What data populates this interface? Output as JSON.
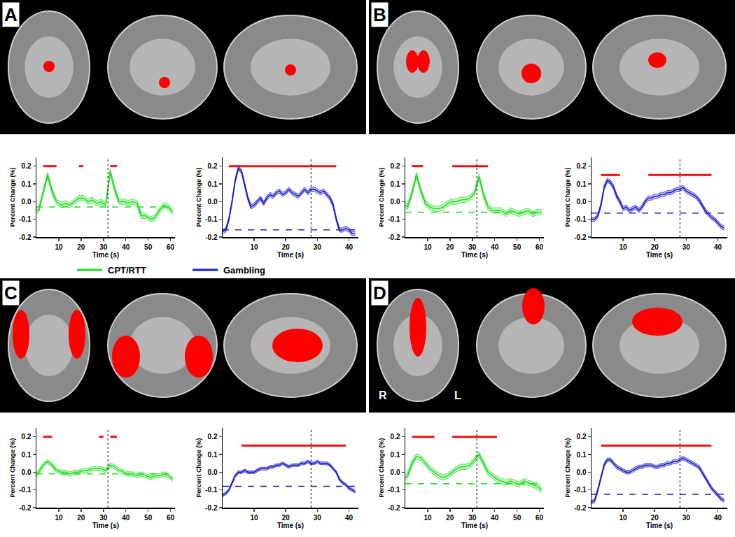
{
  "panels": [
    {
      "label": "A"
    },
    {
      "label": "B"
    },
    {
      "label": "C"
    },
    {
      "label": "D",
      "image_labels": [
        "R",
        "L"
      ]
    }
  ],
  "key": [
    {
      "name": "CPT/RTT",
      "color": "#22dd22"
    },
    {
      "name": "Gambling",
      "color": "#1a1acc"
    }
  ],
  "chart_data": [
    {
      "type": "line",
      "xlabel": "Time (s)",
      "ylabel": "Percent Change (%)",
      "xlim": [
        0,
        62
      ],
      "xticks": [
        10,
        20,
        30,
        40,
        50,
        60
      ],
      "ylim": [
        -0.2,
        0.25
      ],
      "yticks": [
        -0.2,
        -0.1,
        {
          "value": 0,
          "label": "0.0"
        },
        0.1,
        0.2
      ],
      "x": [
        0,
        1,
        3,
        5,
        7,
        9,
        11,
        13,
        15,
        17,
        19,
        21,
        23,
        25,
        27,
        29,
        31,
        33,
        35,
        37,
        39,
        41,
        43,
        45,
        47,
        49,
        51,
        53,
        55,
        57,
        59,
        61
      ],
      "series": [
        {
          "color": "#22dd22",
          "error": 0.015,
          "values": [
            -0.05,
            -0.05,
            0.05,
            0.15,
            0.06,
            0,
            -0.02,
            -0.01,
            -0.02,
            0,
            0.02,
            0.02,
            0,
            0.01,
            -0.01,
            0,
            -0.02,
            0.17,
            0.07,
            0,
            0,
            -0.01,
            0,
            -0.01,
            -0.08,
            -0.08,
            -0.1,
            -0.09,
            -0.05,
            -0.02,
            -0.03,
            -0.06
          ]
        }
      ],
      "baseline": -0.03,
      "event_time": 32,
      "significance": {
        "y": 0.2,
        "color": "#ee1111",
        "segments": [
          [
            3,
            9
          ],
          [
            19,
            21
          ],
          [
            33,
            36
          ]
        ]
      }
    },
    {
      "type": "line",
      "xlabel": "Time (s)",
      "ylabel": "Percent Change (%)",
      "xlim": [
        0,
        43
      ],
      "xticks": [
        10,
        20,
        30,
        40
      ],
      "ylim": [
        -0.2,
        0.25
      ],
      "yticks": [
        -0.2,
        -0.1,
        {
          "value": 0,
          "label": "0.0"
        },
        0.1,
        0.2
      ],
      "x": [
        0,
        1,
        2,
        3,
        4,
        5,
        6,
        7,
        8,
        9,
        10,
        11,
        12,
        13,
        14,
        15,
        16,
        17,
        18,
        19,
        20,
        21,
        22,
        23,
        24,
        25,
        26,
        27,
        28,
        29,
        30,
        31,
        32,
        33,
        34,
        35,
        36,
        37,
        38,
        39,
        40,
        41,
        42
      ],
      "series": [
        {
          "color": "#1a1acc",
          "error": 0.012,
          "values": [
            -0.17,
            -0.16,
            -0.1,
            0,
            0.12,
            0.19,
            0.17,
            0.1,
            0.02,
            -0.03,
            -0.02,
            0,
            0.02,
            -0.01,
            0.02,
            0.04,
            0.03,
            0.05,
            0.06,
            0.04,
            0.05,
            0.07,
            0.05,
            0.04,
            0.03,
            0.05,
            0.07,
            0.05,
            0.07,
            0.07,
            0.06,
            0.05,
            0.06,
            0.04,
            0.02,
            -0.02,
            -0.1,
            -0.16,
            -0.16,
            -0.15,
            -0.16,
            -0.18,
            -0.18
          ]
        }
      ],
      "baseline": -0.16,
      "event_time": 28,
      "significance": {
        "y": 0.2,
        "color": "#ee1111",
        "segments": [
          [
            2,
            36
          ]
        ]
      }
    },
    {
      "type": "line",
      "xlabel": "Time (s)",
      "ylabel": "Percent Change (%)",
      "xlim": [
        0,
        62
      ],
      "xticks": [
        10,
        20,
        30,
        40,
        50,
        60
      ],
      "ylim": [
        -0.2,
        0.25
      ],
      "yticks": [
        -0.2,
        -0.1,
        {
          "value": 0,
          "label": "0.0"
        },
        0.1,
        0.2
      ],
      "x": [
        0,
        1,
        3,
        5,
        7,
        9,
        11,
        13,
        15,
        17,
        19,
        21,
        23,
        25,
        27,
        29,
        31,
        33,
        35,
        37,
        39,
        41,
        43,
        45,
        47,
        49,
        51,
        53,
        55,
        57,
        59,
        61
      ],
      "series": [
        {
          "color": "#22dd22",
          "error": 0.015,
          "values": [
            -0.02,
            -0.03,
            0.05,
            0.15,
            0.06,
            -0.01,
            -0.03,
            -0.04,
            -0.04,
            -0.03,
            -0.01,
            0,
            0,
            0.01,
            0.01,
            0.02,
            0.05,
            0.14,
            0.04,
            -0.03,
            -0.05,
            -0.05,
            -0.05,
            -0.07,
            -0.05,
            -0.06,
            -0.07,
            -0.06,
            -0.05,
            -0.07,
            -0.06,
            -0.06
          ]
        }
      ],
      "baseline": -0.06,
      "event_time": 32,
      "significance": {
        "y": 0.2,
        "color": "#ee1111",
        "segments": [
          [
            3,
            8
          ],
          [
            21,
            37
          ]
        ]
      }
    },
    {
      "type": "line",
      "xlabel": "Time (s)",
      "ylabel": "Percent Change (%)",
      "xlim": [
        0,
        43
      ],
      "xticks": [
        10,
        20,
        30,
        40
      ],
      "ylim": [
        -0.2,
        0.25
      ],
      "yticks": [
        -0.2,
        -0.1,
        {
          "value": 0,
          "label": "0.0"
        },
        0.1,
        0.2
      ],
      "x": [
        0,
        1,
        2,
        3,
        4,
        5,
        6,
        7,
        8,
        9,
        10,
        11,
        12,
        13,
        14,
        15,
        16,
        17,
        18,
        19,
        20,
        21,
        22,
        23,
        24,
        25,
        26,
        27,
        28,
        29,
        30,
        31,
        32,
        33,
        34,
        35,
        36,
        37,
        38,
        39,
        40,
        41,
        42
      ],
      "series": [
        {
          "color": "#1a1acc",
          "error": 0.012,
          "values": [
            -0.1,
            -0.1,
            -0.08,
            -0.02,
            0.08,
            0.12,
            0.11,
            0.08,
            0.03,
            0,
            -0.04,
            -0.03,
            -0.05,
            -0.04,
            -0.03,
            -0.05,
            -0.03,
            0,
            0.02,
            0.02,
            0.03,
            0.03,
            0.04,
            0.04,
            0.05,
            0.05,
            0.06,
            0.07,
            0.07,
            0.08,
            0.06,
            0.05,
            0.04,
            0.03,
            0.01,
            -0.02,
            -0.05,
            -0.07,
            -0.09,
            -0.1,
            -0.12,
            -0.14,
            -0.15
          ]
        }
      ],
      "baseline": -0.065,
      "event_time": 28,
      "significance": {
        "y": 0.15,
        "color": "#ee1111",
        "segments": [
          [
            3,
            9
          ],
          [
            18,
            38
          ]
        ]
      }
    },
    {
      "type": "line",
      "xlabel": "Time (s)",
      "ylabel": "Percent Change (%)",
      "xlim": [
        0,
        62
      ],
      "xticks": [
        10,
        20,
        30,
        40,
        50,
        60
      ],
      "ylim": [
        -0.2,
        0.25
      ],
      "yticks": [
        -0.2,
        -0.1,
        {
          "value": 0,
          "label": "0.0"
        },
        0.1,
        0.2
      ],
      "x": [
        0,
        1,
        3,
        5,
        7,
        9,
        11,
        13,
        15,
        17,
        19,
        21,
        23,
        25,
        27,
        29,
        31,
        33,
        35,
        37,
        39,
        41,
        43,
        45,
        47,
        49,
        51,
        53,
        55,
        57,
        59,
        61
      ],
      "series": [
        {
          "color": "#22dd22",
          "error": 0.012,
          "values": [
            -0.01,
            0,
            0.04,
            0.06,
            0.04,
            0.01,
            0,
            0,
            -0.01,
            0,
            0,
            0.01,
            0.01,
            0.02,
            0.02,
            0.02,
            0.01,
            0.04,
            0.03,
            0.01,
            0,
            -0.01,
            -0.01,
            -0.02,
            -0.01,
            -0.02,
            -0.03,
            -0.02,
            -0.02,
            -0.01,
            -0.02,
            -0.04
          ]
        }
      ],
      "baseline": -0.01,
      "event_time": 32,
      "significance": {
        "y": 0.2,
        "color": "#ee1111",
        "segments": [
          [
            3,
            7
          ],
          [
            28,
            30
          ],
          [
            33,
            36
          ]
        ]
      }
    },
    {
      "type": "line",
      "xlabel": "Time (s)",
      "ylabel": "Percent Change (%)",
      "xlim": [
        0,
        43
      ],
      "xticks": [
        10,
        20,
        30,
        40
      ],
      "ylim": [
        -0.2,
        0.25
      ],
      "yticks": [
        -0.2,
        -0.1,
        {
          "value": 0,
          "label": "0.0"
        },
        0.1,
        0.2
      ],
      "x": [
        0,
        1,
        2,
        3,
        4,
        5,
        6,
        7,
        8,
        9,
        10,
        11,
        12,
        13,
        14,
        15,
        16,
        17,
        18,
        19,
        20,
        21,
        22,
        23,
        24,
        25,
        26,
        27,
        28,
        29,
        30,
        31,
        32,
        33,
        34,
        35,
        36,
        37,
        38,
        39,
        40,
        41,
        42
      ],
      "series": [
        {
          "color": "#1a1acc",
          "error": 0.008,
          "values": [
            -0.13,
            -0.12,
            -0.1,
            -0.06,
            -0.02,
            0,
            0,
            0.01,
            0,
            0,
            0,
            0.01,
            0.02,
            0.02,
            0.02,
            0.03,
            0.03,
            0.04,
            0.04,
            0.05,
            0.04,
            0.03,
            0.04,
            0.04,
            0.04,
            0.05,
            0.05,
            0.06,
            0.05,
            0.05,
            0.06,
            0.05,
            0.05,
            0.05,
            0.04,
            0.02,
            0,
            -0.04,
            -0.06,
            -0.07,
            -0.09,
            -0.1,
            -0.11
          ]
        }
      ],
      "baseline": -0.08,
      "event_time": 28,
      "significance": {
        "y": 0.15,
        "color": "#ee1111",
        "segments": [
          [
            6,
            39
          ]
        ]
      }
    },
    {
      "type": "line",
      "xlabel": "Time (s)",
      "ylabel": "Percent Change (%)",
      "xlim": [
        0,
        62
      ],
      "xticks": [
        10,
        20,
        30,
        40,
        50,
        60
      ],
      "ylim": [
        -0.2,
        0.25
      ],
      "yticks": [
        -0.2,
        -0.1,
        {
          "value": 0,
          "label": "0.0"
        },
        0.1,
        0.2
      ],
      "x": [
        0,
        1,
        3,
        5,
        7,
        9,
        11,
        13,
        15,
        17,
        19,
        21,
        23,
        25,
        27,
        29,
        31,
        33,
        35,
        37,
        39,
        41,
        43,
        45,
        47,
        49,
        51,
        53,
        55,
        57,
        59,
        61
      ],
      "series": [
        {
          "color": "#22dd22",
          "error": 0.015,
          "values": [
            -0.03,
            -0.02,
            0.05,
            0.09,
            0.08,
            0.05,
            0.02,
            0,
            -0.02,
            -0.03,
            -0.02,
            0,
            0.02,
            0.03,
            0.03,
            0.04,
            0.07,
            0.1,
            0.05,
            0,
            -0.02,
            -0.04,
            -0.05,
            -0.06,
            -0.05,
            -0.06,
            -0.07,
            -0.05,
            -0.06,
            -0.07,
            -0.08,
            -0.1
          ]
        }
      ],
      "baseline": -0.065,
      "event_time": 32,
      "significance": {
        "y": 0.2,
        "color": "#ee1111",
        "segments": [
          [
            3,
            13
          ],
          [
            21,
            41
          ]
        ]
      }
    },
    {
      "type": "line",
      "xlabel": "Time (s)",
      "ylabel": "Percent Change (%)",
      "xlim": [
        0,
        43
      ],
      "xticks": [
        10,
        20,
        30,
        40
      ],
      "ylim": [
        -0.2,
        0.25
      ],
      "yticks": [
        -0.2,
        -0.1,
        {
          "value": 0,
          "label": "0.0"
        },
        0.1,
        0.2
      ],
      "x": [
        0,
        1,
        2,
        3,
        4,
        5,
        6,
        7,
        8,
        9,
        10,
        11,
        12,
        13,
        14,
        15,
        16,
        17,
        18,
        19,
        20,
        21,
        22,
        23,
        24,
        25,
        26,
        27,
        28,
        29,
        30,
        31,
        32,
        33,
        34,
        35,
        36,
        37,
        38,
        39,
        40,
        41,
        42
      ],
      "series": [
        {
          "color": "#1a1acc",
          "error": 0.01,
          "values": [
            -0.17,
            -0.16,
            -0.1,
            -0.03,
            0.04,
            0.07,
            0.07,
            0.05,
            0.03,
            0.02,
            0.01,
            0,
            0,
            0.01,
            0.02,
            0.03,
            0.03,
            0.04,
            0.04,
            0.04,
            0.03,
            0.03,
            0.04,
            0.04,
            0.05,
            0.05,
            0.06,
            0.06,
            0.07,
            0.08,
            0.07,
            0.06,
            0.05,
            0.04,
            0.03,
            0,
            -0.03,
            -0.06,
            -0.09,
            -0.11,
            -0.13,
            -0.15,
            -0.16
          ]
        }
      ],
      "baseline": -0.125,
      "event_time": 28,
      "significance": {
        "y": 0.15,
        "color": "#ee1111",
        "segments": [
          [
            3,
            38
          ]
        ]
      }
    }
  ]
}
